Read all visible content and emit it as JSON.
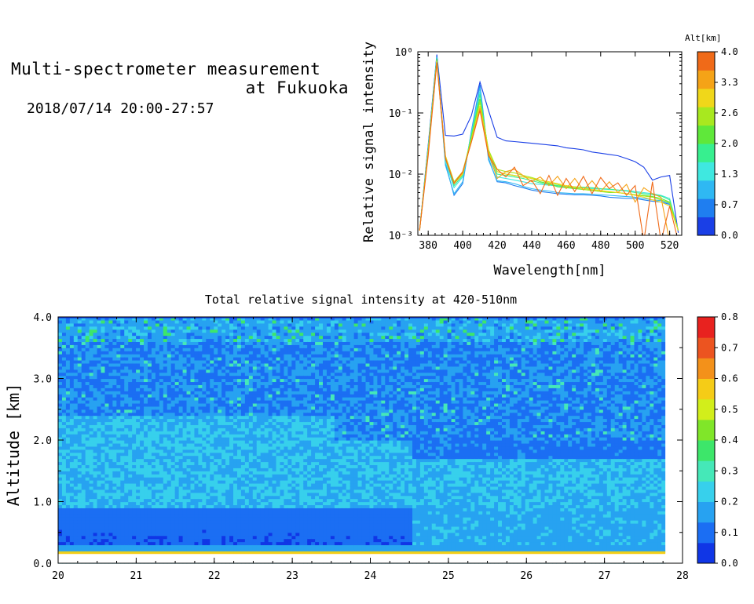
{
  "header": {
    "title_line1": "Multi-spectrometer measurement",
    "title_line2": "at Fukuoka",
    "date_range": "2018/07/14 20:00-27:57"
  },
  "colors": {
    "alt_scale": [
      "#1a3fe6",
      "#1f7ef0",
      "#2fb8f3",
      "#3fe8e0",
      "#37ef8f",
      "#5fe83a",
      "#a8e81f",
      "#f0d71a",
      "#f5a317",
      "#f06a18"
    ],
    "intensity_scale": [
      "#1036e6",
      "#1b6ef3",
      "#27a2f1",
      "#37d0ec",
      "#45e8b8",
      "#3de66a",
      "#80e629",
      "#d2ee1b",
      "#f5cc17",
      "#f3911a",
      "#ec5420",
      "#e8221f"
    ]
  },
  "chart_data": [
    {
      "type": "line",
      "xlabel": "Wavelength[nm]",
      "ylabel": "Relative signal intensity",
      "x_ticks": [
        "380",
        "400",
        "420",
        "440",
        "460",
        "480",
        "500",
        "520"
      ],
      "y_ticks": [
        "10⁻³",
        "10⁻²",
        "10⁻¹",
        "10⁰"
      ],
      "x": [
        375,
        380,
        385,
        390,
        395,
        400,
        405,
        410,
        415,
        420,
        425,
        430,
        435,
        440,
        445,
        450,
        455,
        460,
        465,
        470,
        475,
        480,
        485,
        490,
        495,
        500,
        505,
        510,
        515,
        520,
        525
      ],
      "xlim": [
        374,
        527
      ],
      "ylim": [
        0.001,
        1.0
      ],
      "yscale": "log",
      "colorbar": {
        "label": "Alt[km]",
        "ticks": [
          "0.0",
          "0.7",
          "1.3",
          "2.0",
          "2.6",
          "3.3",
          "4.0"
        ]
      },
      "series": [
        {
          "alt": 0.0,
          "values": [
            0.0012,
            0.03,
            0.9,
            0.043,
            0.042,
            0.045,
            0.09,
            0.32,
            0.11,
            0.04,
            0.035,
            0.034,
            0.033,
            0.032,
            0.031,
            0.03,
            0.029,
            0.027,
            0.026,
            0.025,
            0.023,
            0.022,
            0.021,
            0.02,
            0.018,
            0.016,
            0.013,
            0.008,
            0.009,
            0.0095,
            0.0011
          ]
        },
        {
          "alt": 0.4,
          "values": [
            0.0012,
            0.028,
            0.85,
            0.015,
            0.0045,
            0.007,
            0.05,
            0.29,
            0.018,
            0.0075,
            0.0072,
            0.0065,
            0.006,
            0.0055,
            0.0052,
            0.005,
            0.0048,
            0.0047,
            0.0046,
            0.0046,
            0.0045,
            0.0044,
            0.0042,
            0.0041,
            0.004,
            0.004,
            0.0038,
            0.0036,
            0.0035,
            0.0032,
            0.0012
          ]
        },
        {
          "alt": 0.9,
          "values": [
            0.0012,
            0.027,
            0.82,
            0.014,
            0.0048,
            0.0075,
            0.048,
            0.26,
            0.017,
            0.0078,
            0.0075,
            0.007,
            0.0063,
            0.0058,
            0.0055,
            0.0053,
            0.005,
            0.0049,
            0.0048,
            0.0048,
            0.0047,
            0.0046,
            0.0045,
            0.0044,
            0.0043,
            0.0042,
            0.004,
            0.0038,
            0.0037,
            0.0033,
            0.0012
          ]
        },
        {
          "alt": 1.3,
          "values": [
            0.0012,
            0.026,
            0.8,
            0.016,
            0.006,
            0.009,
            0.045,
            0.22,
            0.02,
            0.009,
            0.0085,
            0.008,
            0.0075,
            0.007,
            0.0068,
            0.0066,
            0.0064,
            0.0062,
            0.006,
            0.006,
            0.0058,
            0.0057,
            0.0056,
            0.0055,
            0.0054,
            0.0052,
            0.005,
            0.0048,
            0.0045,
            0.004,
            0.0012
          ]
        },
        {
          "alt": 1.7,
          "values": [
            0.0012,
            0.026,
            0.78,
            0.018,
            0.0065,
            0.0095,
            0.042,
            0.2,
            0.022,
            0.01,
            0.0095,
            0.009,
            0.0085,
            0.0078,
            0.0072,
            0.0068,
            0.0065,
            0.0063,
            0.0062,
            0.0061,
            0.006,
            0.0058,
            0.0057,
            0.0055,
            0.0053,
            0.005,
            0.0048,
            0.0046,
            0.0044,
            0.0038,
            0.0012
          ]
        },
        {
          "alt": 2.2,
          "values": [
            0.0012,
            0.025,
            0.75,
            0.019,
            0.007,
            0.01,
            0.04,
            0.17,
            0.024,
            0.011,
            0.01,
            0.0095,
            0.009,
            0.0085,
            0.0075,
            0.007,
            0.0062,
            0.006,
            0.0058,
            0.0056,
            0.0055,
            0.0052,
            0.005,
            0.005,
            0.0048,
            0.0046,
            0.0045,
            0.0043,
            0.004,
            0.0035,
            0.0012
          ]
        },
        {
          "alt": 2.6,
          "values": [
            0.0012,
            0.024,
            0.72,
            0.02,
            0.0075,
            0.011,
            0.038,
            0.15,
            0.025,
            0.012,
            0.011,
            0.0105,
            0.0095,
            0.0088,
            0.008,
            0.0072,
            0.0068,
            0.0062,
            0.006,
            0.0056,
            0.0054,
            0.0052,
            0.0051,
            0.005,
            0.0048,
            0.0046,
            0.0044,
            0.0042,
            0.0038,
            0.0034,
            0.0012
          ]
        },
        {
          "alt": 3.1,
          "values": [
            0.0012,
            0.023,
            0.7,
            0.02,
            0.007,
            0.01,
            0.035,
            0.13,
            0.023,
            0.011,
            0.01,
            0.0095,
            0.009,
            0.0085,
            0.008,
            0.0075,
            0.007,
            0.0065,
            0.0062,
            0.0059,
            0.0056,
            0.0054,
            0.0052,
            0.005,
            0.0048,
            0.0045,
            0.0042,
            0.0038,
            0.0035,
            0.003,
            0.0012
          ]
        },
        {
          "alt": 3.5,
          "values": [
            0.0012,
            0.022,
            0.68,
            0.019,
            0.0072,
            0.0105,
            0.034,
            0.12,
            0.022,
            0.0085,
            0.011,
            0.012,
            0.0095,
            0.0075,
            0.009,
            0.0065,
            0.0092,
            0.0058,
            0.0085,
            0.0055,
            0.0078,
            0.0052,
            0.0075,
            0.005,
            0.0068,
            0.0035,
            0.006,
            0.0048,
            0.0042,
            0.0008,
            0.0008
          ]
        },
        {
          "alt": 4.0,
          "values": [
            0.0012,
            0.02,
            0.66,
            0.018,
            0.007,
            0.011,
            0.033,
            0.11,
            0.02,
            0.012,
            0.009,
            0.013,
            0.0065,
            0.008,
            0.0048,
            0.0095,
            0.0045,
            0.0085,
            0.0052,
            0.0092,
            0.0048,
            0.0088,
            0.0058,
            0.0072,
            0.0045,
            0.0065,
            0.0008,
            0.0075,
            0.0008,
            0.003,
            0.0008
          ]
        }
      ]
    },
    {
      "type": "heatmap",
      "title": "Total relative signal intensity at 420-510nm",
      "xlabel": "",
      "ylabel": "Altitude [km]",
      "x_ticks": [
        "20",
        "21",
        "22",
        "23",
        "24",
        "25",
        "26",
        "27",
        "28"
      ],
      "y_ticks": [
        "0.0",
        "1.0",
        "2.0",
        "3.0",
        "4.0"
      ],
      "xlim": [
        20,
        28
      ],
      "ylim": [
        0.0,
        4.0
      ],
      "data_xlim": [
        20.0,
        27.78
      ],
      "colorbar": {
        "ticks": [
          "0.0",
          "0.1",
          "0.2",
          "0.3",
          "0.4",
          "0.5",
          "0.6",
          "0.7",
          "0.8"
        ],
        "range": [
          0.0,
          0.8
        ]
      },
      "bands": [
        {
          "alt_from": 0.0,
          "alt_to": 0.15,
          "value": null
        },
        {
          "alt_from": 0.15,
          "alt_to": 0.2,
          "value": 0.55
        },
        {
          "alt_from": 0.2,
          "alt_to": 0.3,
          "value": 0.2
        },
        {
          "alt_from": 0.3,
          "alt_to": 0.9,
          "value_before_24_5": 0.08,
          "value_after_24_5": 0.2
        },
        {
          "alt_from": 0.9,
          "alt_to": 2.0,
          "value": 0.22
        },
        {
          "alt_from": 2.0,
          "alt_to": 3.6,
          "value": 0.15
        },
        {
          "alt_from": 3.6,
          "alt_to": 4.0,
          "value": 0.2
        }
      ]
    }
  ]
}
